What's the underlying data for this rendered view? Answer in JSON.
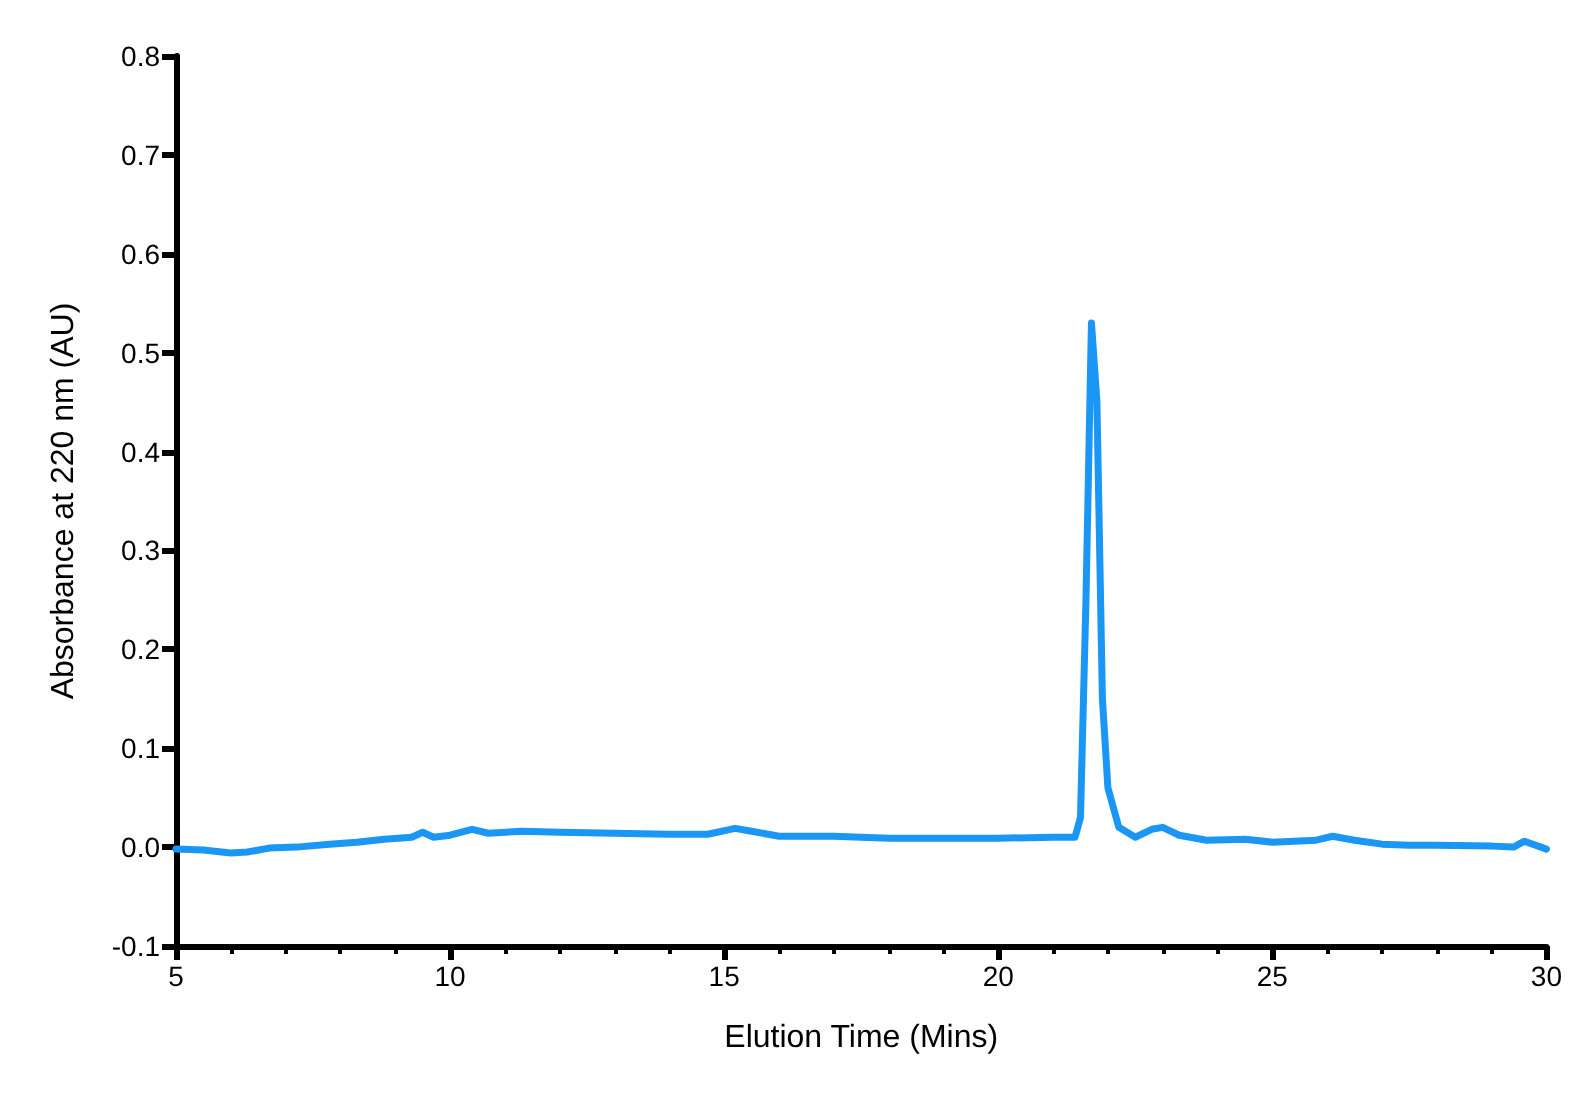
{
  "chart_data": {
    "type": "line",
    "xlabel": "Elution Time (Mins)",
    "ylabel": "Absorbance at 220 nm (AU)",
    "xlim": [
      5,
      30
    ],
    "xticks": [
      5,
      10,
      15,
      20,
      25,
      30
    ],
    "ylim": [
      -0.1,
      0.8
    ],
    "yticks": [
      -0.1,
      {
        "value": 0,
        "label": "0.0"
      },
      0.1,
      0.2,
      0.3,
      0.4,
      0.5,
      0.6,
      0.7,
      0.8
    ],
    "grid": false,
    "marker": "none",
    "line_style": "solid",
    "series": [
      {
        "color": "#1a96f5",
        "x": [
          5.0,
          5.5,
          6.0,
          6.3,
          6.7,
          7.2,
          7.8,
          8.3,
          8.8,
          9.3,
          9.5,
          9.7,
          10.0,
          10.4,
          10.7,
          11.3,
          12,
          13,
          14,
          14.7,
          15.2,
          15.5,
          16,
          17,
          17.5,
          18,
          19,
          20,
          21,
          21.4,
          21.5,
          21.6,
          21.7,
          21.8,
          21.9,
          22.0,
          22.2,
          22.5,
          22.8,
          23.0,
          23.3,
          23.8,
          24.5,
          25,
          25.8,
          26.1,
          26.5,
          27,
          27.5,
          28,
          29,
          29.4,
          29.6,
          30
        ],
        "values": [
          -0.002,
          -0.003,
          -0.006,
          -0.005,
          -0.001,
          0.0,
          0.003,
          0.005,
          0.008,
          0.01,
          0.015,
          0.01,
          0.012,
          0.018,
          0.014,
          0.016,
          0.015,
          0.014,
          0.013,
          0.013,
          0.019,
          0.016,
          0.011,
          0.011,
          0.01,
          0.009,
          0.009,
          0.009,
          0.01,
          0.01,
          0.03,
          0.25,
          0.53,
          0.45,
          0.15,
          0.06,
          0.02,
          0.01,
          0.018,
          0.02,
          0.012,
          0.007,
          0.008,
          0.005,
          0.007,
          0.011,
          0.007,
          0.003,
          0.002,
          0.002,
          0.001,
          0.0,
          0.006,
          -0.002
        ]
      }
    ]
  }
}
